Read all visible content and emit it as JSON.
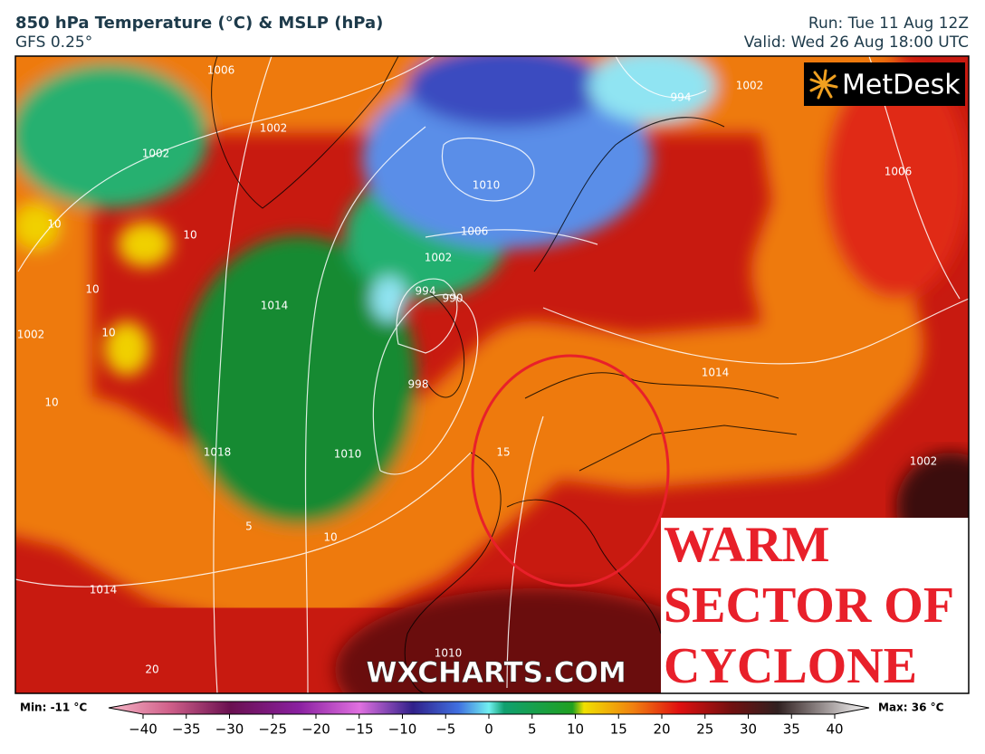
{
  "header": {
    "title": "850 hPa Temperature (°C) & MSLP (hPa)",
    "model": "GFS 0.25°",
    "run": "Run: Tue 11 Aug 12Z",
    "valid": "Valid: Wed 26 Aug 18:00 UTC"
  },
  "logo": "MetDesk",
  "watermark": "WXCHARTS.COM",
  "annotation": {
    "lines": [
      "WARM",
      "SECTOR OF",
      "CYCLONE"
    ]
  },
  "map_labels": [
    "1006",
    "1002",
    "1002",
    "1010",
    "1006",
    "1002",
    "994",
    "990",
    "998",
    "1014",
    "1018",
    "1010",
    "1014",
    "994",
    "1002",
    "1006",
    "1014",
    "1002",
    "1002",
    "1010",
    "10",
    "10",
    "10",
    "10",
    "10",
    "10",
    "5",
    "15",
    "20"
  ],
  "colorbar": {
    "min": "Min: -11 °C",
    "max": "Max: 36 °C",
    "ticks": [
      "−40",
      "−35",
      "−30",
      "−25",
      "−20",
      "−15",
      "−10",
      "−5",
      "0",
      "5",
      "10",
      "15",
      "20",
      "25",
      "30",
      "35",
      "40"
    ]
  }
}
